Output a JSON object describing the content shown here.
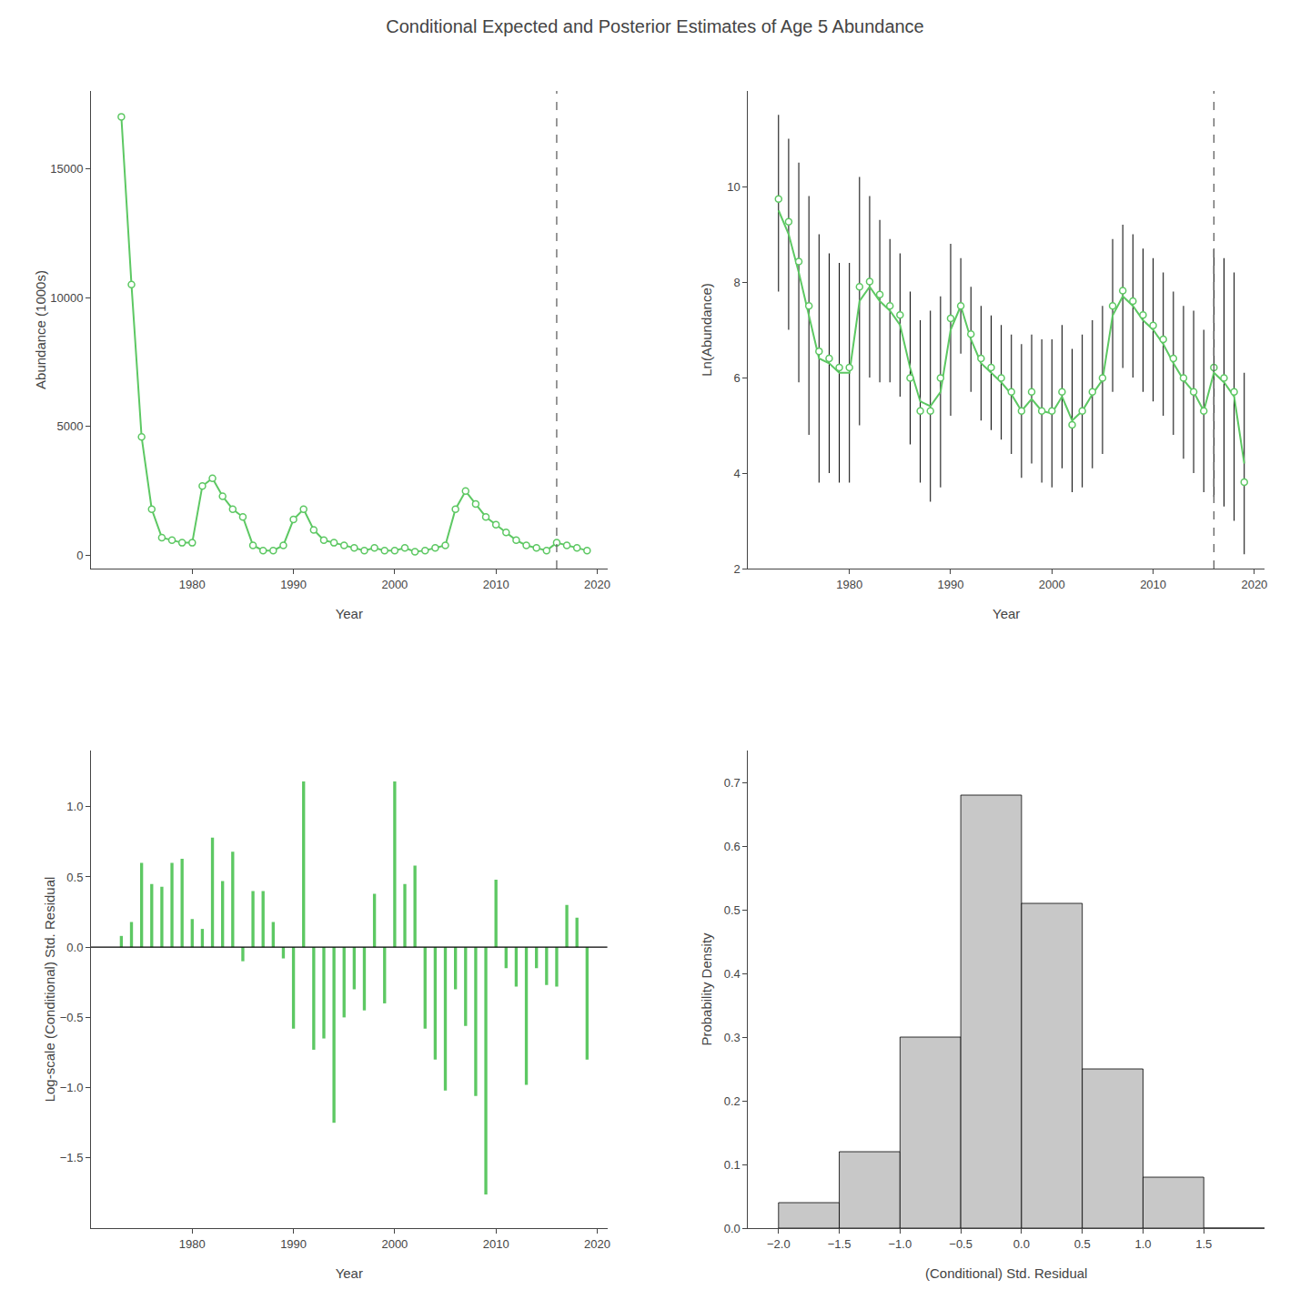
{
  "title": "Conditional Expected and Posterior Estimates of Age 5 Abundance",
  "chart_data": [
    {
      "type": "line",
      "xlabel": "Year",
      "ylabel": "Abundance (1000s)",
      "x": [
        1973,
        1974,
        1975,
        1976,
        1977,
        1978,
        1979,
        1980,
        1981,
        1982,
        1983,
        1984,
        1985,
        1986,
        1987,
        1988,
        1989,
        1990,
        1991,
        1992,
        1993,
        1994,
        1995,
        1996,
        1997,
        1998,
        1999,
        2000,
        2001,
        2002,
        2003,
        2004,
        2005,
        2006,
        2007,
        2008,
        2009,
        2010,
        2011,
        2012,
        2013,
        2014,
        2015,
        2016,
        2017,
        2018,
        2019
      ],
      "series": [
        {
          "type": "line",
          "color": "#5DC863",
          "values": [
            17000,
            10500,
            4600,
            1800,
            700,
            600,
            500,
            500,
            2700,
            3000,
            2300,
            1800,
            1500,
            400,
            200,
            200,
            400,
            1400,
            1800,
            1000,
            600,
            500,
            400,
            300,
            200,
            300,
            200,
            200,
            300,
            150,
            200,
            300,
            400,
            1800,
            2500,
            2000,
            1500,
            1200,
            900,
            600,
            400,
            300,
            200,
            500,
            400,
            300,
            200
          ]
        },
        {
          "type": "scatter",
          "color": "#5DC863",
          "marker": "open circle",
          "values": [
            17000,
            10500,
            4600,
            1800,
            700,
            600,
            500,
            500,
            2700,
            3000,
            2300,
            1800,
            1500,
            400,
            200,
            200,
            400,
            1400,
            1800,
            1000,
            600,
            500,
            400,
            300,
            200,
            300,
            200,
            200,
            300,
            150,
            200,
            300,
            400,
            1800,
            2500,
            2000,
            1500,
            1200,
            900,
            600,
            400,
            300,
            200,
            500,
            400,
            300,
            200
          ]
        }
      ],
      "vline": {
        "x": 2016,
        "line_style": "dashed"
      },
      "xlim": [
        1970,
        2021
      ],
      "xticks": [
        1980,
        1990,
        2000,
        2010,
        2020
      ],
      "ylim": [
        -500,
        18000
      ],
      "yticks": [
        0,
        5000,
        10000,
        15000
      ],
      "grid": false
    },
    {
      "type": "line",
      "xlabel": "Year",
      "ylabel": "Ln(Abundance)",
      "x": [
        1973,
        1974,
        1975,
        1976,
        1977,
        1978,
        1979,
        1980,
        1981,
        1982,
        1983,
        1984,
        1985,
        1986,
        1987,
        1988,
        1989,
        1990,
        1991,
        1992,
        1993,
        1994,
        1995,
        1996,
        1997,
        1998,
        1999,
        2000,
        2001,
        2002,
        2003,
        2004,
        2005,
        2006,
        2007,
        2008,
        2009,
        2010,
        2011,
        2012,
        2013,
        2014,
        2015,
        2016,
        2017,
        2018,
        2019
      ],
      "series": [
        {
          "type": "range",
          "color": "#000000",
          "lower": [
            7.8,
            7.0,
            5.9,
            4.8,
            3.8,
            4.0,
            3.8,
            3.8,
            5.0,
            6.0,
            5.9,
            5.9,
            5.6,
            4.6,
            3.8,
            3.4,
            3.7,
            5.2,
            6.5,
            5.7,
            5.1,
            4.9,
            4.7,
            4.4,
            3.9,
            4.2,
            3.8,
            3.7,
            4.1,
            3.6,
            3.7,
            4.1,
            4.4,
            5.7,
            6.2,
            6.0,
            5.7,
            5.5,
            5.2,
            4.8,
            4.3,
            4.0,
            3.6,
            3.5,
            3.3,
            3.0,
            2.3
          ],
          "upper": [
            11.5,
            11.0,
            10.5,
            9.8,
            9.0,
            8.6,
            8.4,
            8.4,
            10.2,
            9.8,
            9.3,
            8.9,
            8.6,
            7.8,
            7.2,
            7.4,
            7.7,
            8.8,
            8.5,
            7.9,
            7.5,
            7.3,
            7.1,
            6.9,
            6.7,
            6.9,
            6.8,
            6.8,
            7.1,
            6.6,
            6.9,
            7.2,
            7.5,
            8.9,
            9.2,
            9.0,
            8.7,
            8.5,
            8.2,
            7.8,
            7.5,
            7.4,
            7.0,
            8.7,
            8.5,
            8.2,
            6.1
          ]
        },
        {
          "type": "line",
          "color": "#5DC863",
          "values": [
            9.5,
            9.0,
            8.2,
            7.3,
            6.4,
            6.3,
            6.1,
            6.1,
            7.6,
            7.9,
            7.6,
            7.4,
            7.1,
            6.2,
            5.5,
            5.4,
            5.7,
            7.0,
            7.5,
            6.8,
            6.3,
            6.1,
            5.9,
            5.65,
            5.3,
            5.55,
            5.3,
            5.25,
            5.6,
            5.1,
            5.3,
            5.65,
            5.95,
            7.3,
            7.7,
            7.5,
            7.2,
            7.0,
            6.7,
            6.3,
            5.95,
            5.7,
            5.3,
            6.1,
            5.9,
            5.6,
            4.2
          ]
        },
        {
          "type": "scatter",
          "color": "#5DC863",
          "marker": "open circle",
          "values": [
            9.74,
            9.26,
            8.43,
            7.5,
            6.55,
            6.4,
            6.21,
            6.21,
            7.9,
            8.01,
            7.74,
            7.5,
            7.31,
            5.99,
            5.3,
            5.3,
            5.99,
            7.24,
            7.5,
            6.91,
            6.4,
            6.21,
            5.99,
            5.7,
            5.3,
            5.7,
            5.3,
            5.3,
            5.7,
            5.01,
            5.3,
            5.7,
            5.99,
            7.5,
            7.82,
            7.6,
            7.31,
            7.09,
            6.8,
            6.4,
            5.99,
            5.7,
            5.3,
            6.21,
            5.99,
            5.7,
            3.81
          ]
        }
      ],
      "vline": {
        "x": 2016,
        "line_style": "dashed"
      },
      "xlim": [
        1970,
        2021
      ],
      "xticks": [
        1980,
        1990,
        2000,
        2010,
        2020
      ],
      "ylim": [
        2,
        12
      ],
      "yticks": [
        2,
        4,
        6,
        8,
        10
      ],
      "grid": false
    },
    {
      "type": "bar",
      "xlabel": "Year",
      "ylabel": "Log-scale (Conditional) Std. Residual",
      "x": [
        1973,
        1974,
        1975,
        1976,
        1977,
        1978,
        1979,
        1980,
        1981,
        1982,
        1983,
        1984,
        1985,
        1986,
        1987,
        1988,
        1989,
        1990,
        1991,
        1992,
        1993,
        1994,
        1995,
        1996,
        1997,
        1998,
        1999,
        2000,
        2001,
        2002,
        2003,
        2004,
        2005,
        2006,
        2007,
        2008,
        2009,
        2010,
        2011,
        2012,
        2013,
        2014,
        2015,
        2016,
        2017,
        2018,
        2019
      ],
      "series": [
        {
          "type": "bar",
          "color": "#5DC863",
          "values": [
            0.08,
            0.18,
            0.6,
            0.45,
            0.43,
            0.6,
            0.63,
            0.2,
            0.13,
            0.78,
            0.47,
            0.68,
            -0.1,
            0.4,
            0.4,
            0.18,
            -0.08,
            -0.58,
            1.18,
            -0.73,
            -0.65,
            -1.25,
            -0.5,
            -0.3,
            -0.45,
            0.38,
            -0.4,
            1.18,
            0.45,
            0.58,
            -0.58,
            -0.8,
            -1.02,
            -0.3,
            -0.56,
            -1.06,
            -1.76,
            0.48,
            -0.15,
            -0.28,
            -0.98,
            -0.15,
            -0.27,
            -0.28,
            0.3,
            0.21,
            -0.8
          ]
        }
      ],
      "hline": {
        "y": 0
      },
      "xlim": [
        1970,
        2021
      ],
      "xticks": [
        1980,
        1990,
        2000,
        2010,
        2020
      ],
      "ylim": [
        -2.0,
        1.4
      ],
      "yticks": [
        {
          "value": -1.5,
          "label": "−1.5"
        },
        {
          "value": -1.0,
          "label": "−1.0"
        },
        {
          "value": -0.5,
          "label": "−0.5"
        },
        {
          "value": 0.0,
          "label": "0.0"
        },
        0.5,
        {
          "value": 1.0,
          "label": "1.0"
        }
      ],
      "grid": false
    },
    {
      "type": "histogram",
      "xlabel": "(Conditional) Std. Residual",
      "ylabel": "Probability Density",
      "bins": [
        -2.0,
        -1.5,
        -1.0,
        -0.5,
        0.0,
        0.5,
        1.0,
        1.5,
        2.0
      ],
      "values": [
        0.04,
        0.12,
        0.3,
        0.68,
        0.51,
        0.25,
        0.08,
        0.0
      ],
      "color": "#C8C8C8",
      "xlim": [
        -2.25,
        2.0
      ],
      "xticks": [
        {
          "value": -2.0,
          "label": "−2.0"
        },
        {
          "value": -1.5,
          "label": "−1.5"
        },
        {
          "value": -1.0,
          "label": "−1.0"
        },
        {
          "value": -0.5,
          "label": "−0.5"
        },
        {
          "value": 0.0,
          "label": "0.0"
        },
        0.5,
        {
          "value": 1.0,
          "label": "1.0"
        },
        1.5
      ],
      "ylim": [
        0,
        0.75
      ],
      "yticks": [
        {
          "value": 0.0,
          "label": "0.0"
        },
        0.1,
        0.2,
        0.3,
        0.4,
        0.5,
        0.6,
        0.7
      ],
      "grid": false
    }
  ]
}
